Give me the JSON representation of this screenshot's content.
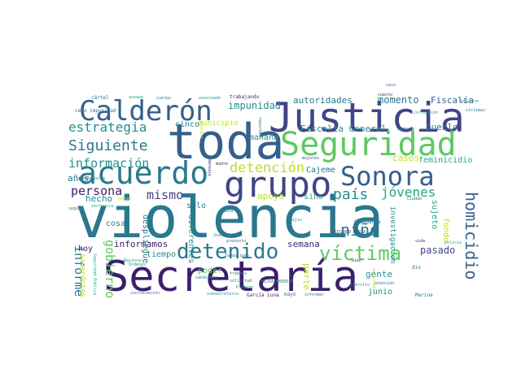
{
  "wordcloud": {
    "palette": {
      "purple": "#3b1f6b",
      "indigo": "#414487",
      "blue": "#355f8d",
      "teal": "#2a788e",
      "sea": "#21908d",
      "green": "#22a884",
      "lime": "#5ec962",
      "yellow": "#bddf26"
    },
    "words": [
      {
        "text": "violencia",
        "color": "#2a788e"
      },
      {
        "text": "Secretaría",
        "color": "#3b1f6b"
      },
      {
        "text": "toda",
        "color": "#355f8d"
      },
      {
        "text": "Justicia",
        "color": "#414487"
      },
      {
        "text": "Seguridad",
        "color": "#5ec962"
      },
      {
        "text": "Calderón",
        "color": "#355f8d"
      },
      {
        "text": "grupo",
        "color": "#414487"
      },
      {
        "text": "acuerdo",
        "color": "#2a788e"
      },
      {
        "text": "Sonora",
        "color": "#355f8d"
      },
      {
        "text": "detenido",
        "color": "#2a788e"
      },
      {
        "text": "víctima",
        "color": "#5ec962"
      },
      {
        "text": "homicidio",
        "color": "#355f8d"
      },
      {
        "text": "estrategia",
        "color": "#21908d"
      },
      {
        "text": "Siguiente",
        "color": "#2a788e"
      },
      {
        "text": "información",
        "color": "#21908d"
      },
      {
        "text": "detención",
        "color": "#bddf26"
      },
      {
        "text": "país",
        "color": "#21908d"
      },
      {
        "text": "jóvenes",
        "color": "#22a884"
      },
      {
        "text": "persona",
        "color": "#3b1f6b"
      },
      {
        "text": "mismo",
        "color": "#414487"
      },
      {
        "text": "niño",
        "color": "#2a788e"
      },
      {
        "text": "gobierno",
        "color": "#5ec962"
      },
      {
        "text": "informe",
        "color": "#2a788e"
      },
      {
        "text": "impunidad",
        "color": "#21908d"
      },
      {
        "text": "momento",
        "color": "#2a788e"
      },
      {
        "text": "Fiscalía",
        "color": "#355f8d"
      },
      {
        "text": "Fiscalía General",
        "color": "#21908d"
      },
      {
        "text": "autoridades",
        "color": "#2a788e"
      },
      {
        "text": "pueblo",
        "color": "#2a788e"
      },
      {
        "text": "feminicidio",
        "color": "#22a884"
      },
      {
        "text": "casos",
        "color": "#bddf26"
      },
      {
        "text": "Cajeme",
        "color": "#2a788e"
      },
      {
        "text": "cinco",
        "color": "#2a788e"
      },
      {
        "text": "municipio",
        "color": "#bddf26"
      },
      {
        "text": "mañana",
        "color": "#21908d"
      },
      {
        "text": "apoyo",
        "color": "#bddf26"
      },
      {
        "text": "sino",
        "color": "#22a884"
      },
      {
        "text": "hecho",
        "color": "#21908d"
      },
      {
        "text": "años",
        "color": "#2a788e"
      },
      {
        "text": "sólo",
        "color": "#2a788e"
      },
      {
        "text": "cosa",
        "color": "#2a788e"
      },
      {
        "text": "informamos",
        "color": "#3b1f6b"
      },
      {
        "text": "tiempo",
        "color": "#21908d"
      },
      {
        "text": "semana",
        "color": "#3b1f6b"
      },
      {
        "text": "pasado",
        "color": "#414487"
      },
      {
        "text": "hoy",
        "color": "#3b1f6b"
      },
      {
        "text": "despliegue",
        "color": "#2a788e"
      },
      {
        "text": "diferentes",
        "color": "#21908d"
      },
      {
        "text": "parte",
        "color": "#bddf26"
      },
      {
        "text": "gente",
        "color": "#21908d"
      },
      {
        "text": "junio",
        "color": "#21908d"
      },
      {
        "text": "investigación",
        "color": "#21908d"
      },
      {
        "text": "sujeto",
        "color": "#22a884"
      },
      {
        "text": "fondo",
        "color": "#bddf26"
      },
      {
        "text": "poder",
        "color": "#5ec962"
      },
      {
        "text": "sacerdotes",
        "color": "#bddf26"
      },
      {
        "text": "trabajando",
        "color": "#3b1f6b"
      },
      {
        "text": "cártel",
        "color": "#2a788e"
      },
      {
        "text": "cero impunidad",
        "color": "#2a788e"
      },
      {
        "text": "asesinado",
        "color": "#21908d"
      },
      {
        "text": "cuento",
        "color": "#3b1f6b"
      },
      {
        "text": "aunque",
        "color": "#22a884"
      },
      {
        "text": "cuerpo",
        "color": "#2a788e"
      },
      {
        "text": "Chihuahua",
        "color": "#2a788e"
      },
      {
        "text": "Tamaulipas",
        "color": "#2a788e"
      },
      {
        "text": "RICARDO MEJÍA",
        "color": "#414487"
      },
      {
        "text": "MEJÍA BERDEJA",
        "color": "#2a788e"
      },
      {
        "text": "García Luna",
        "color": "#3b1f6b"
      },
      {
        "text": "mayo",
        "color": "#2a788e"
      },
      {
        "text": "Marina",
        "color": "#2a788e"
      },
      {
        "text": "atención",
        "color": "#2a788e"
      },
      {
        "text": "Ciudad",
        "color": "#2a788e"
      },
      {
        "text": "vida",
        "color": "#3b1f6b"
      },
      {
        "text": "dio",
        "color": "#2a788e"
      },
      {
        "text": "solicitud",
        "color": "#2a788e"
      },
      {
        "text": "trabajo",
        "color": "#2a788e"
      },
      {
        "text": "Primero",
        "color": "#21908d"
      },
      {
        "text": "candidato",
        "color": "#2a788e"
      },
      {
        "text": "Órdenes",
        "color": "#21908d"
      },
      {
        "text": "presunto",
        "color": "#2a788e"
      },
      {
        "text": "coordinación",
        "color": "#2a788e"
      },
      {
        "text": "subsecretario",
        "color": "#21908d"
      },
      {
        "text": "campaña",
        "color": "#2a788e"
      },
      {
        "text": "corrupción",
        "color": "#22a884"
      },
      {
        "text": "aprehensión",
        "color": "#2a788e"
      },
      {
        "text": "mujeres",
        "color": "#414487"
      },
      {
        "text": "madre",
        "color": "#3b1f6b"
      },
      {
        "text": "seguir",
        "color": "#2a788e"
      },
      {
        "text": "jueces",
        "color": "#bddf26"
      },
      {
        "text": "Mijis",
        "color": "#2a788e"
      },
      {
        "text": "bien",
        "color": "#3b1f6b"
      },
      {
        "text": "José",
        "color": "#2a788e"
      },
      {
        "text": "causa",
        "color": "#2a788e"
      },
      {
        "text": "proceso",
        "color": "#bddf26"
      },
      {
        "text": "Nacional",
        "color": "#22a884"
      },
      {
        "text": "Seguridad Pública",
        "color": "#22a884"
      },
      {
        "text": "sentencia",
        "color": "#22a884"
      },
      {
        "text": "asesinados",
        "color": "#bddf26"
      },
      {
        "text": "informar",
        "color": "#2a788e"
      },
      {
        "text": "caso",
        "color": "#2a788e"
      },
      {
        "text": "Gobierno",
        "color": "#21908d"
      },
      {
        "text": "Ejército",
        "color": "#21908d"
      },
      {
        "text": "mensaje",
        "color": "#3b1f6b"
      },
      {
        "text": "reportes",
        "color": "#2a788e"
      },
      {
        "text": "policía",
        "color": "#22a884"
      },
      {
        "text": "víctimas",
        "color": "#2a788e"
      }
    ]
  }
}
